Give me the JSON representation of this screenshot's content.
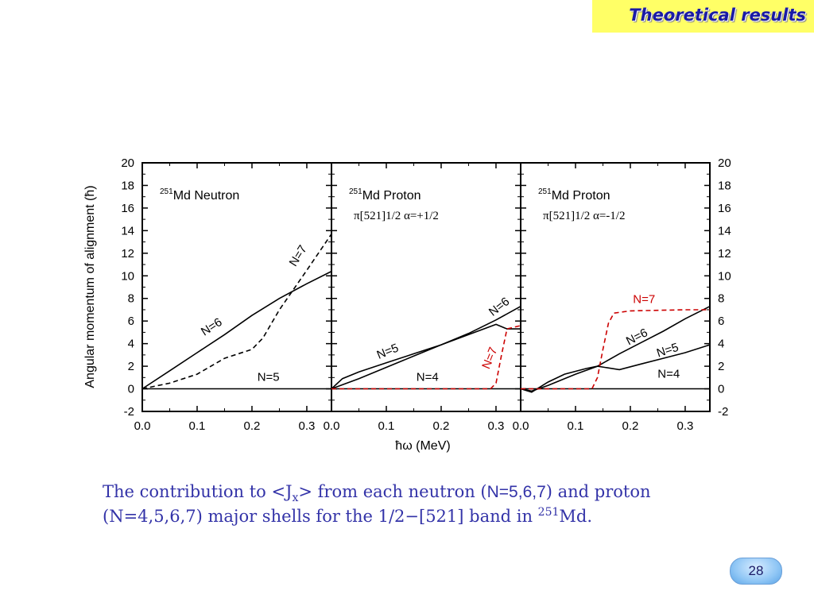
{
  "slide": {
    "title": "Theoretical results",
    "page_number": "28",
    "caption": {
      "part1": "The contribution to <J",
      "sub": "x",
      "part2": "> from each neutron (",
      "neutron_shells": "N=5,6,7",
      "part3": ") and proton",
      "line2_start": "(N=4,5,6,7) major shells for the 1/2−[521] band in ",
      "sup": "251",
      "line2_end": "Md."
    }
  },
  "chart_data": {
    "type": "line",
    "xlabel": "ħω (MeV)",
    "ylabel": "Angular momentum of alignment (ħ)",
    "ylim": [
      -2,
      20
    ],
    "y_ticks": [
      -2,
      0,
      2,
      4,
      6,
      8,
      10,
      12,
      14,
      16,
      18,
      20
    ],
    "x_tick_labels": [
      "0.0",
      "0.1",
      "0.2",
      "0.3"
    ],
    "panels": [
      {
        "title_sup": "251",
        "title": "Md Neutron",
        "subtitle": "",
        "xlim": [
          0,
          0.345
        ],
        "series": [
          {
            "name": "N=5",
            "style": "solid",
            "color": "#000000",
            "x": [
              0,
              0.345
            ],
            "y": [
              0,
              0
            ]
          },
          {
            "name": "N=6",
            "style": "solid",
            "color": "#000000",
            "x": [
              0,
              0.05,
              0.1,
              0.15,
              0.2,
              0.25,
              0.3,
              0.345
            ],
            "y": [
              0,
              1.6,
              3.2,
              4.8,
              6.5,
              8.0,
              9.3,
              10.4
            ]
          },
          {
            "name": "N=7",
            "style": "dashed",
            "color": "#000000",
            "x": [
              0,
              0.05,
              0.1,
              0.15,
              0.2,
              0.22,
              0.25,
              0.3,
              0.345
            ],
            "y": [
              0,
              0.5,
              1.3,
              2.7,
              3.5,
              4.5,
              7.0,
              10.5,
              13.7
            ]
          }
        ]
      },
      {
        "title_sup": "251",
        "title": "Md Proton",
        "subtitle": "π[521]1/2 α=+1/2",
        "xlim": [
          0,
          0.345
        ],
        "series": [
          {
            "name": "N=4",
            "style": "solid",
            "color": "#000000",
            "x": [
              0,
              0.345
            ],
            "y": [
              0,
              0
            ]
          },
          {
            "name": "N=5",
            "style": "solid",
            "color": "#000000",
            "x": [
              0,
              0.02,
              0.05,
              0.1,
              0.15,
              0.2,
              0.25,
              0.3,
              0.32,
              0.345
            ],
            "y": [
              0,
              0.9,
              1.5,
              2.3,
              3.1,
              3.9,
              4.8,
              5.7,
              5.3,
              5.3
            ]
          },
          {
            "name": "N=6",
            "style": "solid",
            "color": "#000000",
            "x": [
              0,
              0.05,
              0.1,
              0.15,
              0.2,
              0.25,
              0.3,
              0.345
            ],
            "y": [
              0,
              0.9,
              1.9,
              2.9,
              3.9,
              4.9,
              6.1,
              7.3
            ]
          },
          {
            "name": "N=7",
            "style": "dashed",
            "color": "#cc0000",
            "x": [
              0,
              0.29,
              0.3,
              0.31,
              0.32,
              0.345
            ],
            "y": [
              0,
              0,
              0.5,
              3.0,
              5.3,
              5.6
            ]
          }
        ]
      },
      {
        "title_sup": "251",
        "title": "Md Proton",
        "subtitle": "π[521]1/2 α=-1/2",
        "xlim": [
          0,
          0.345
        ],
        "series": [
          {
            "name": "N=4",
            "style": "solid",
            "color": "#000000",
            "x": [
              0,
              0.345
            ],
            "y": [
              0,
              0
            ]
          },
          {
            "name": "N=5",
            "style": "solid",
            "color": "#000000",
            "x": [
              0,
              0.02,
              0.05,
              0.08,
              0.12,
              0.14,
              0.18,
              0.22,
              0.26,
              0.3,
              0.345
            ],
            "y": [
              0,
              -0.3,
              0.6,
              1.3,
              1.8,
              2.0,
              1.7,
              2.2,
              2.7,
              3.2,
              3.9
            ]
          },
          {
            "name": "N=6",
            "style": "solid",
            "color": "#000000",
            "x": [
              0,
              0.02,
              0.05,
              0.08,
              0.1,
              0.14,
              0.18,
              0.22,
              0.26,
              0.3,
              0.345
            ],
            "y": [
              0,
              -0.2,
              0.3,
              0.9,
              1.3,
              2.0,
              3.1,
              4.1,
              5.1,
              6.2,
              7.3
            ]
          },
          {
            "name": "N=7",
            "style": "dashed",
            "color": "#cc0000",
            "x": [
              0,
              0.13,
              0.14,
              0.15,
              0.16,
              0.17,
              0.2,
              0.3,
              0.345
            ],
            "y": [
              0,
              0,
              1.0,
              3.5,
              5.8,
              6.7,
              6.9,
              7.0,
              7.0
            ]
          }
        ]
      }
    ]
  }
}
